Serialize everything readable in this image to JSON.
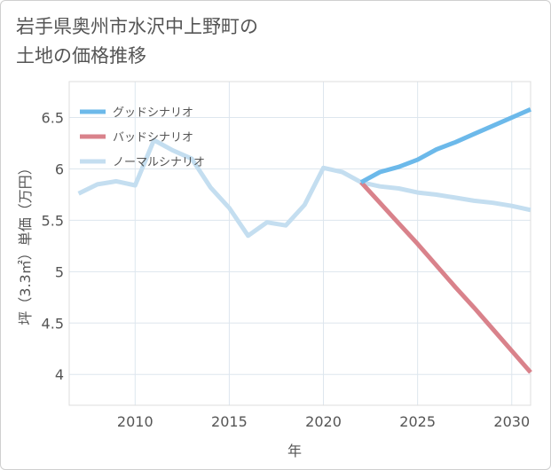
{
  "title_lines": [
    "岩手県奥州市水沢中上野町の",
    "土地の価格推移"
  ],
  "chart_data": {
    "type": "line",
    "title": "岩手県奥州市水沢中上野町の土地の価格推移",
    "xlabel": "年",
    "ylabel": "坪（3.3㎡）単価（万円）",
    "xlim": [
      2006.5,
      2031
    ],
    "ylim": [
      3.7,
      6.85
    ],
    "xticks": [
      2010,
      2015,
      2020,
      2025,
      2030
    ],
    "yticks": [
      4,
      4.5,
      5,
      5.5,
      6,
      6.5
    ],
    "xtick_labels": [
      "2010",
      "2015",
      "2020",
      "2025",
      "2030"
    ],
    "ytick_labels": [
      "4",
      "4.5",
      "5",
      "5.5",
      "6",
      "6.5"
    ],
    "legend_position": "top-left",
    "series": [
      {
        "name": "グッドシナリオ",
        "color": "#6cb9ea",
        "x": [
          2022,
          2023,
          2024,
          2025,
          2026,
          2027,
          2028,
          2029,
          2030,
          2031
        ],
        "y": [
          5.87,
          5.97,
          6.02,
          6.09,
          6.19,
          6.26,
          6.34,
          6.42,
          6.5,
          6.58
        ]
      },
      {
        "name": "バッドシナリオ",
        "color": "#d9828b",
        "x": [
          2022,
          2023,
          2024,
          2025,
          2026,
          2027,
          2028,
          2029,
          2030,
          2031
        ],
        "y": [
          5.87,
          5.67,
          5.47,
          5.27,
          5.06,
          4.85,
          4.65,
          4.44,
          4.23,
          4.02
        ]
      },
      {
        "name": "ノーマルシナリオ",
        "color": "#c4def0",
        "x": [
          2007,
          2008,
          2009,
          2010,
          2011,
          2012,
          2013,
          2014,
          2015,
          2016,
          2017,
          2018,
          2019,
          2020,
          2021,
          2022,
          2023,
          2024,
          2025,
          2026,
          2027,
          2028,
          2029,
          2030,
          2031
        ],
        "y": [
          5.76,
          5.85,
          5.88,
          5.84,
          6.28,
          6.18,
          6.1,
          5.82,
          5.62,
          5.35,
          5.48,
          5.45,
          5.65,
          6.01,
          5.97,
          5.87,
          5.83,
          5.81,
          5.77,
          5.75,
          5.72,
          5.69,
          5.67,
          5.64,
          5.6
        ]
      }
    ]
  }
}
